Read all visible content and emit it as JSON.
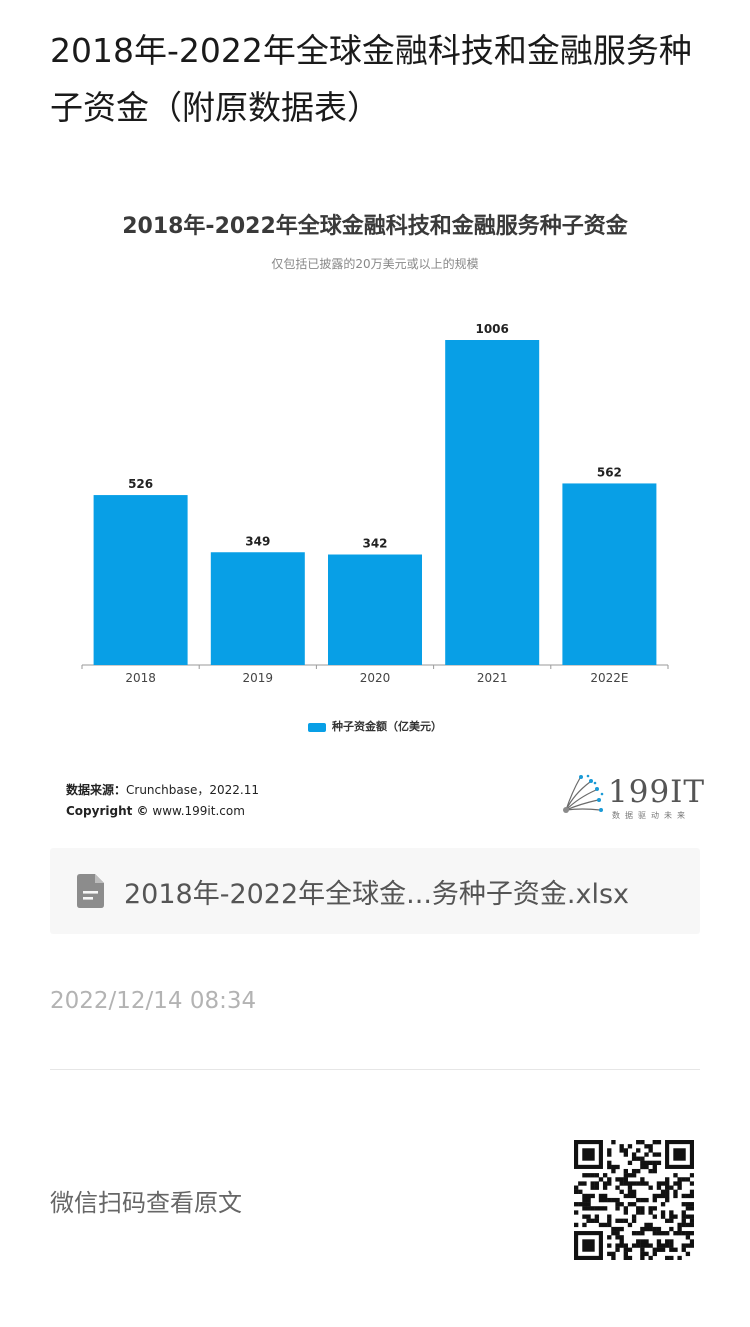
{
  "article": {
    "title": "2018年-2022年全球金融科技和金融服务种子资金（附原数据表）"
  },
  "chart_data": {
    "type": "bar",
    "title": "2018年-2022年全球金融科技和金融服务种子资金",
    "subtitle": "仅包括已披露的20万美元或以上的规模",
    "categories": [
      "2018",
      "2019",
      "2020",
      "2021",
      "2022E"
    ],
    "series": [
      {
        "name": "种子资金额（亿美元）",
        "values": [
          526,
          349,
          342,
          1006,
          562
        ],
        "color": "#089fe6"
      }
    ],
    "data_labels": [
      "526",
      "349",
      "342",
      "1006",
      "562"
    ],
    "ylim": [
      0,
      1060
    ],
    "grid": false,
    "legend_position": "bottom"
  },
  "source": {
    "label": "数据来源：",
    "text": "Crunchbase，2022.11",
    "copyright_label": "Copyright ©",
    "copyright_text": "www.199it.com"
  },
  "logo": {
    "text": "199IT",
    "slogan": "数据驱动未来"
  },
  "attachment": {
    "icon": "document-icon",
    "filename": "2018年-2022年全球金...务种子资金.xlsx"
  },
  "meta": {
    "timestamp": "2022/12/14 08:34",
    "qr_hint": "微信扫码查看原文"
  }
}
